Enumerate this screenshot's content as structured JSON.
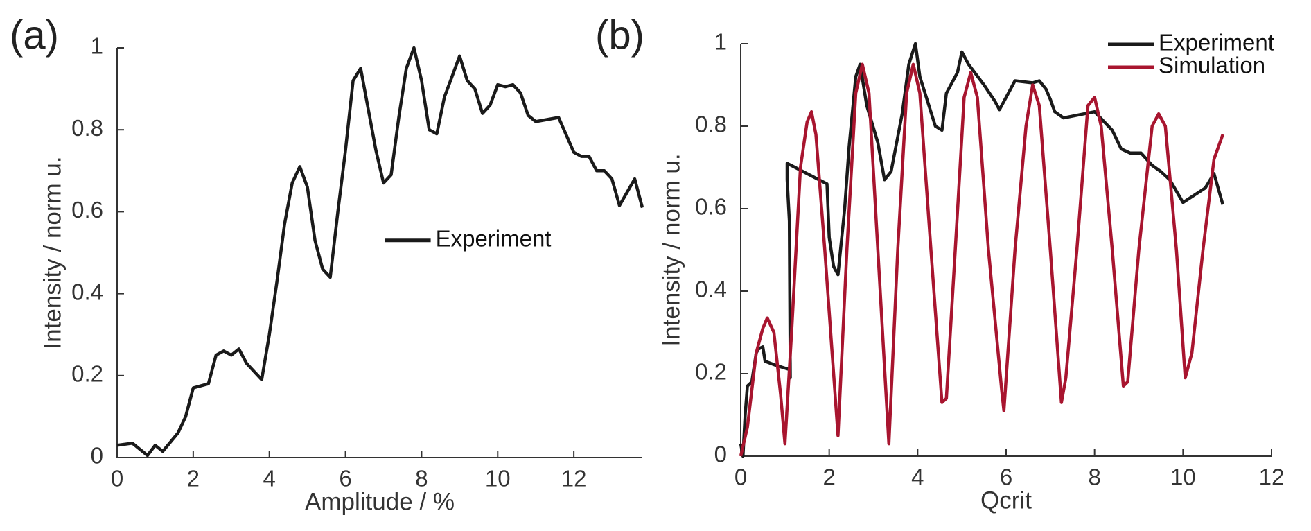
{
  "chart_data": [
    {
      "type": "line",
      "annotation": "(a)",
      "x_label": "Amplitude / %",
      "y_label": "Intensity / norm u.",
      "xlim": [
        0,
        13.8
      ],
      "xticks": [
        0,
        2,
        4,
        6,
        8,
        10,
        12
      ],
      "ylim": [
        0,
        1
      ],
      "yticks": [
        0,
        0.2,
        0.4,
        0.6,
        0.8,
        1
      ],
      "legend": "right",
      "series": [
        {
          "name": "Experiment",
          "color": "#1a1a1a",
          "x": [
            0,
            0.4,
            0.8,
            1.0,
            1.2,
            1.6,
            1.8,
            2.0,
            2.4,
            2.6,
            2.8,
            3.0,
            3.2,
            3.4,
            3.6,
            3.8,
            4.0,
            4.2,
            4.4,
            4.6,
            4.8,
            5.0,
            5.2,
            5.4,
            5.6,
            5.8,
            6.0,
            6.2,
            6.4,
            6.6,
            6.8,
            7.0,
            7.2,
            7.4,
            7.6,
            7.8,
            8.0,
            8.2,
            8.4,
            8.6,
            8.8,
            9.0,
            9.2,
            9.4,
            9.6,
            9.8,
            10.0,
            10.2,
            10.4,
            10.6,
            10.8,
            11.0,
            11.6,
            12.0,
            12.2,
            12.4,
            12.6,
            12.8,
            13.0,
            13.2,
            13.6,
            13.8
          ],
          "values": [
            0.03,
            0.035,
            0.005,
            0.03,
            0.015,
            0.06,
            0.1,
            0.17,
            0.18,
            0.25,
            0.26,
            0.25,
            0.265,
            0.23,
            0.21,
            0.19,
            0.3,
            0.43,
            0.57,
            0.67,
            0.71,
            0.66,
            0.53,
            0.46,
            0.44,
            0.6,
            0.75,
            0.92,
            0.95,
            0.85,
            0.75,
            0.67,
            0.69,
            0.83,
            0.95,
            1.0,
            0.92,
            0.8,
            0.79,
            0.88,
            0.93,
            0.98,
            0.92,
            0.9,
            0.84,
            0.86,
            0.91,
            0.905,
            0.91,
            0.89,
            0.835,
            0.82,
            0.83,
            0.745,
            0.735,
            0.735,
            0.7,
            0.7,
            0.68,
            0.615,
            0.68,
            0.61
          ]
        }
      ]
    },
    {
      "type": "line",
      "annotation": "(b)",
      "x_label": "Qcrit",
      "y_label": "Intensity / norm u.",
      "xlim": [
        0,
        12
      ],
      "xticks": [
        0,
        2,
        4,
        6,
        8,
        10,
        12
      ],
      "ylim": [
        0,
        1
      ],
      "yticks": [
        0,
        0.2,
        0.4,
        0.6,
        0.8,
        1
      ],
      "legend": "upper right",
      "series": [
        {
          "name": "Experiment",
          "color": "#1a1a1a",
          "x": [
            0,
            0.05,
            0.1,
            0.15,
            0.25,
            0.35,
            0.4,
            0.5,
            0.55,
            0.8,
            1.1,
            1.12,
            1.1,
            1.05,
            1.05,
            1.95,
            2.0,
            2.1,
            2.2,
            2.35,
            2.45,
            2.6,
            2.7,
            2.85,
            3.1,
            3.25,
            3.4,
            3.65,
            3.8,
            3.95,
            4.05,
            4.4,
            4.55,
            4.65,
            4.9,
            5.0,
            5.15,
            5.5,
            5.75,
            5.85,
            6.05,
            6.2,
            6.6,
            6.75,
            6.9,
            7.0,
            7.1,
            7.3,
            8.0,
            8.4,
            8.6,
            8.8,
            9.05,
            9.3,
            9.5,
            9.7,
            10.0,
            10.5,
            10.7,
            10.9
          ],
          "values": [
            0.03,
            0.0,
            0.1,
            0.17,
            0.18,
            0.25,
            0.26,
            0.265,
            0.23,
            0.22,
            0.21,
            0.19,
            0.57,
            0.67,
            0.71,
            0.66,
            0.53,
            0.46,
            0.44,
            0.6,
            0.75,
            0.92,
            0.95,
            0.85,
            0.76,
            0.67,
            0.69,
            0.83,
            0.95,
            1.0,
            0.92,
            0.8,
            0.79,
            0.88,
            0.93,
            0.98,
            0.95,
            0.9,
            0.86,
            0.84,
            0.88,
            0.91,
            0.905,
            0.91,
            0.89,
            0.865,
            0.835,
            0.82,
            0.835,
            0.79,
            0.745,
            0.735,
            0.735,
            0.705,
            0.69,
            0.67,
            0.615,
            0.65,
            0.685,
            0.61
          ]
        },
        {
          "name": "Simulation",
          "color": "#a8152f",
          "x": [
            0,
            0.15,
            0.35,
            0.5,
            0.6,
            0.75,
            0.9,
            1.0,
            1.15,
            1.35,
            1.5,
            1.6,
            1.7,
            1.9,
            2.2,
            2.4,
            2.6,
            2.75,
            2.9,
            3.1,
            3.35,
            3.55,
            3.75,
            3.9,
            4.05,
            4.3,
            4.55,
            4.65,
            4.85,
            5.05,
            5.2,
            5.35,
            5.6,
            5.9,
            5.95,
            6.2,
            6.45,
            6.6,
            6.75,
            7.0,
            7.25,
            7.35,
            7.6,
            7.85,
            8.0,
            8.15,
            8.4,
            8.65,
            8.75,
            9.0,
            9.3,
            9.45,
            9.6,
            9.85,
            10.05,
            10.2,
            10.45,
            10.7,
            10.9
          ],
          "values": [
            0,
            0.07,
            0.25,
            0.31,
            0.335,
            0.3,
            0.15,
            0.03,
            0.3,
            0.7,
            0.81,
            0.835,
            0.78,
            0.5,
            0.05,
            0.5,
            0.88,
            0.95,
            0.88,
            0.5,
            0.03,
            0.5,
            0.88,
            0.95,
            0.88,
            0.5,
            0.13,
            0.14,
            0.5,
            0.87,
            0.93,
            0.87,
            0.5,
            0.16,
            0.11,
            0.5,
            0.8,
            0.9,
            0.85,
            0.5,
            0.13,
            0.19,
            0.5,
            0.85,
            0.87,
            0.8,
            0.5,
            0.17,
            0.18,
            0.5,
            0.8,
            0.83,
            0.8,
            0.5,
            0.19,
            0.25,
            0.5,
            0.72,
            0.78
          ]
        }
      ]
    }
  ]
}
